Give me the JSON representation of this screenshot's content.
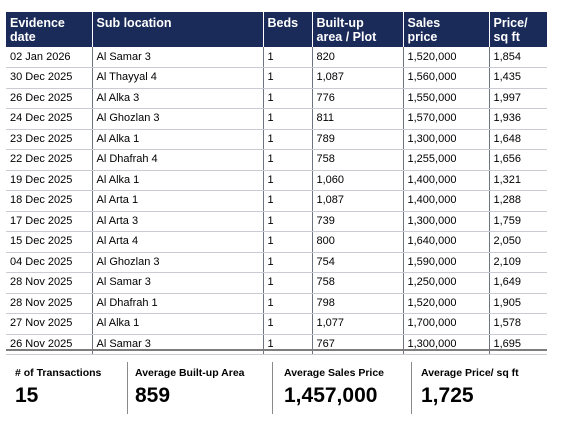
{
  "table": {
    "headers": [
      [
        "Evidence",
        "date"
      ],
      [
        "Sub location"
      ],
      [
        "Beds"
      ],
      [
        "Built-up",
        "area / Plot"
      ],
      [
        "Sales",
        "price"
      ],
      [
        "Price/",
        "sq ft"
      ]
    ],
    "rows": [
      [
        "02 Jan 2026",
        "Al Samar 3",
        "1",
        "820",
        "1,520,000",
        "1,854"
      ],
      [
        "30 Dec 2025",
        "Al Thayyal 4",
        "1",
        "1,087",
        "1,560,000",
        "1,435"
      ],
      [
        "26 Dec 2025",
        "Al Alka 3",
        "1",
        "776",
        "1,550,000",
        "1,997"
      ],
      [
        "24 Dec 2025",
        "Al Ghozlan 3",
        "1",
        "811",
        "1,570,000",
        "1,936"
      ],
      [
        "23 Dec 2025",
        "Al Alka 1",
        "1",
        "789",
        "1,300,000",
        "1,648"
      ],
      [
        "22 Dec 2025",
        "Al Dhafrah 4",
        "1",
        "758",
        "1,255,000",
        "1,656"
      ],
      [
        "19 Dec 2025",
        "Al Alka 1",
        "1",
        "1,060",
        "1,400,000",
        "1,321"
      ],
      [
        "18 Dec 2025",
        "Al Arta 1",
        "1",
        "1,087",
        "1,400,000",
        "1,288"
      ],
      [
        "17 Dec 2025",
        "Al Arta 3",
        "1",
        "739",
        "1,300,000",
        "1,759"
      ],
      [
        "15 Dec 2025",
        "Al Arta 4",
        "1",
        "800",
        "1,640,000",
        "2,050"
      ],
      [
        "04 Dec 2025",
        "Al Ghozlan 3",
        "1",
        "754",
        "1,590,000",
        "2,109"
      ],
      [
        "28 Nov 2025",
        "Al Samar 3",
        "1",
        "758",
        "1,250,000",
        "1,649"
      ],
      [
        "28 Nov 2025",
        "Al Dhafrah 1",
        "1",
        "798",
        "1,520,000",
        "1,905"
      ],
      [
        "27 Nov 2025",
        "Al Alka 1",
        "1",
        "1,077",
        "1,700,000",
        "1,578"
      ],
      [
        "26 Nov 2025",
        "Al Samar 3",
        "1",
        "767",
        "1,300,000",
        "1,695"
      ]
    ]
  },
  "summary": [
    {
      "label": "# of Transactions",
      "value": "15"
    },
    {
      "label": "Average Built-up Area",
      "value": "859"
    },
    {
      "label": "Average Sales Price",
      "value": "1,457,000"
    },
    {
      "label": "Average Price/ sq ft",
      "value": "1,725"
    }
  ],
  "colors": {
    "header_bg": "#1a2b5a",
    "header_text": "#ffffff"
  }
}
